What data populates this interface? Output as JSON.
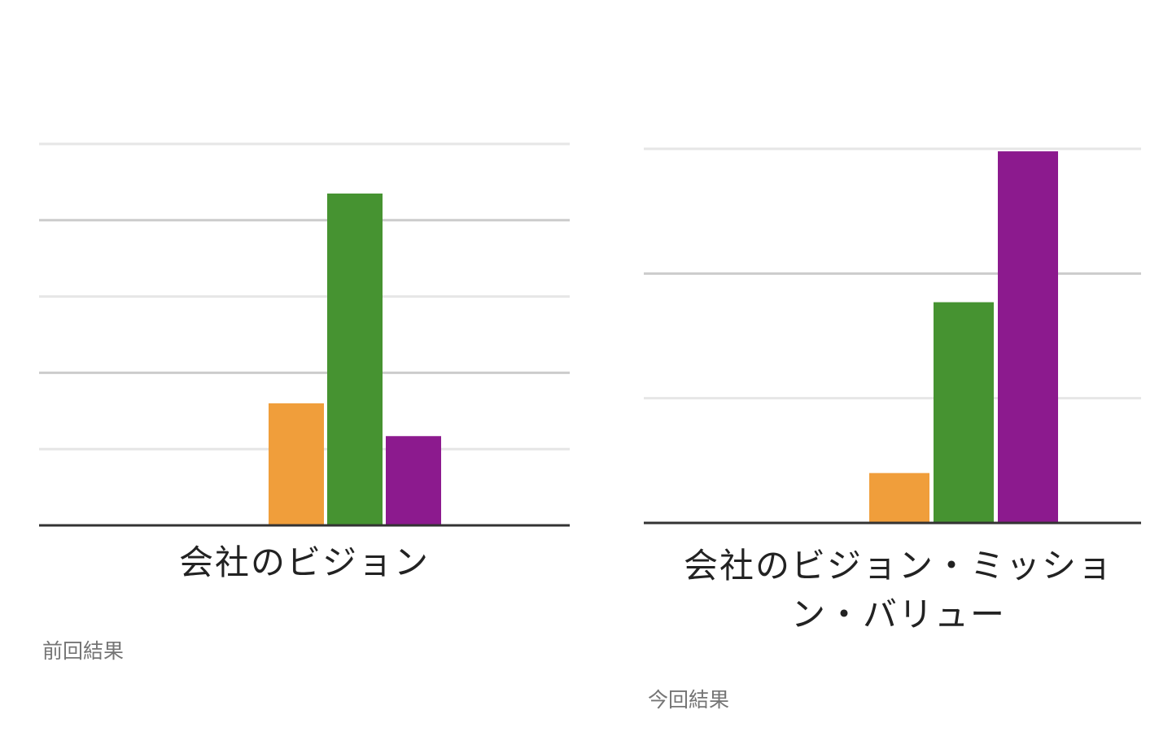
{
  "chart_data": [
    {
      "type": "bar",
      "categories": [
        "会社のビジョン"
      ],
      "series": [
        {
          "color": "#F09E3B",
          "values": [
            1.6
          ]
        },
        {
          "color": "#469331",
          "values": [
            4.35
          ]
        },
        {
          "color": "#8C1A8E",
          "values": [
            1.17
          ]
        }
      ],
      "ylim": [
        0,
        5
      ],
      "grid": true,
      "caption": "前回結果"
    },
    {
      "type": "bar",
      "categories": [
        "会社のビジョン・ミッション・バリュー"
      ],
      "series": [
        {
          "color": "#F09E3B",
          "values": [
            0.4
          ]
        },
        {
          "color": "#469331",
          "values": [
            1.77
          ]
        },
        {
          "color": "#8C1A8E",
          "values": [
            2.98
          ]
        }
      ],
      "ylim": [
        0,
        3
      ],
      "grid": true,
      "caption": "今回結果"
    }
  ]
}
